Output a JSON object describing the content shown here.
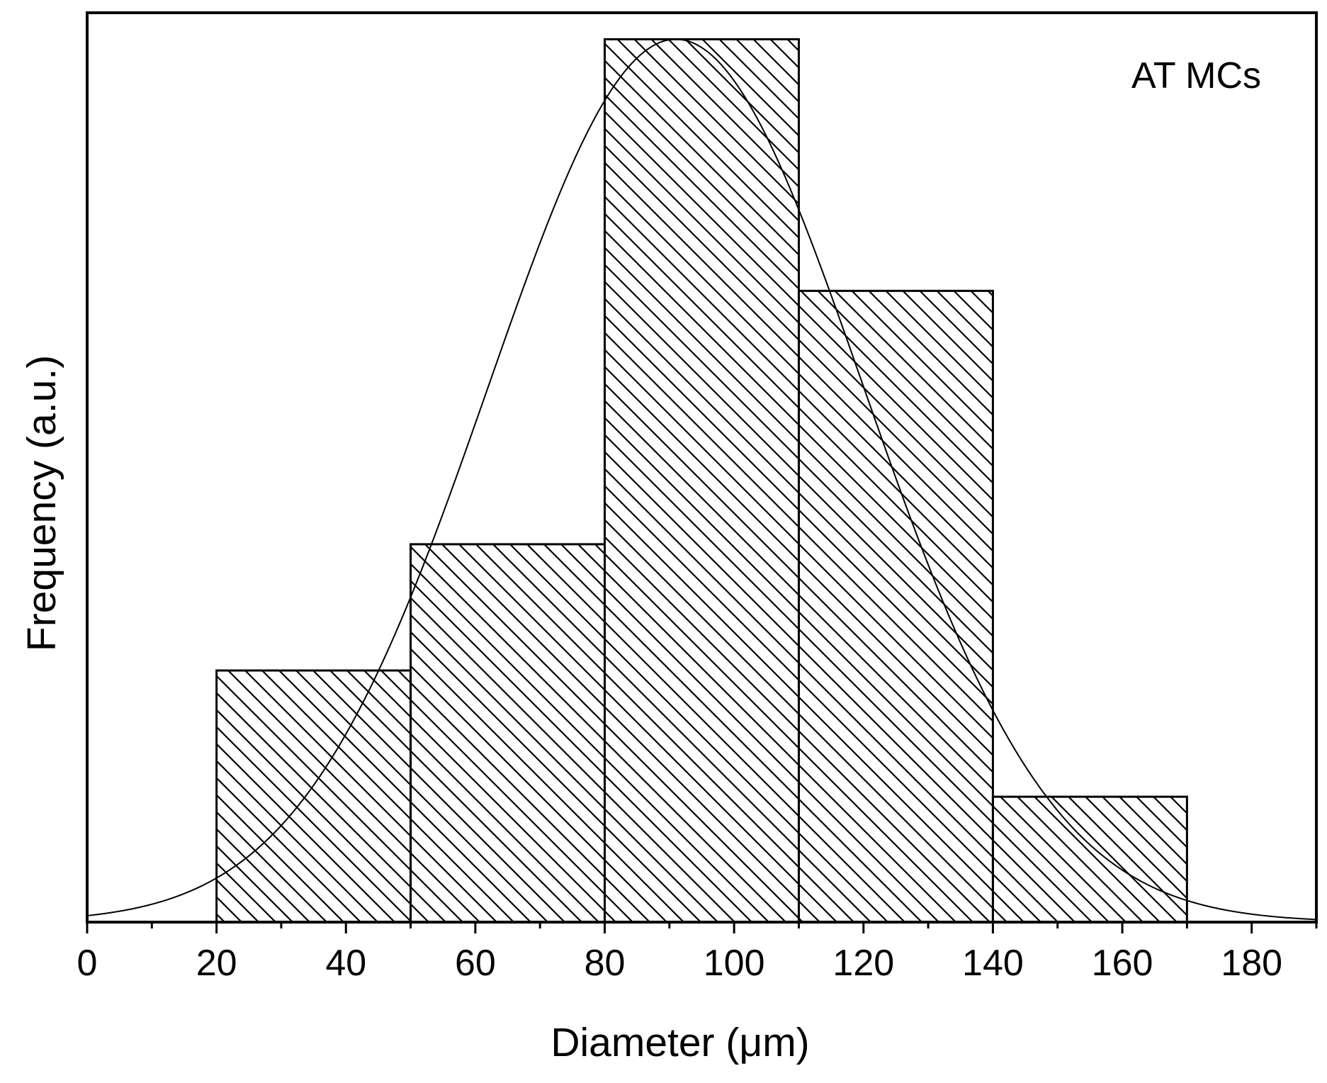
{
  "chart_data": {
    "type": "bar",
    "title": "",
    "annotation": "AT MCs",
    "xlabel": "Diameter (μm)",
    "ylabel": "Frequency (a.u.)",
    "xlim": [
      0,
      190
    ],
    "ylim": [
      0,
      1.03
    ],
    "x_ticks": [
      0,
      20,
      40,
      60,
      80,
      100,
      120,
      140,
      160,
      180
    ],
    "x_minor_step": 10,
    "y_ticks_shown": false,
    "bins": [
      {
        "start": 20,
        "end": 50,
        "value": 0.285
      },
      {
        "start": 50,
        "end": 80,
        "value": 0.428
      },
      {
        "start": 80,
        "end": 110,
        "value": 1.0
      },
      {
        "start": 110,
        "end": 140,
        "value": 0.715
      },
      {
        "start": 140,
        "end": 170,
        "value": 0.142
      }
    ],
    "bar_fill": "diagonal-hatch",
    "fit_curve": {
      "type": "gaussian",
      "center": 91,
      "sigma": 29,
      "peak": 1.0
    },
    "colors": {
      "bars": "#000000",
      "curve": "#000000",
      "background": "#ffffff"
    },
    "grid": false,
    "legend": "none"
  }
}
